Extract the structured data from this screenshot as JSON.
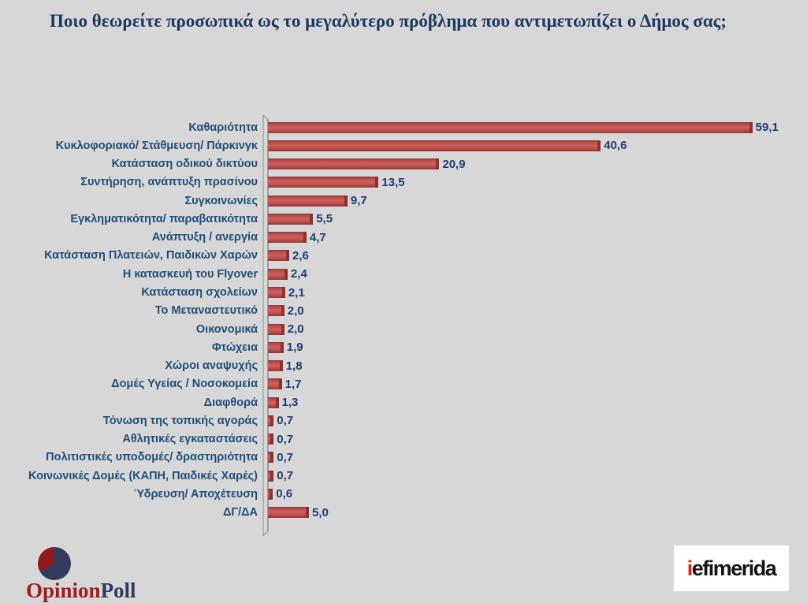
{
  "title": "Ποιο θεωρείτε προσωπικά ως το μεγαλύτερο πρόβλημα που αντιμετωπίζει ο Δήμος σας;",
  "chart_data": {
    "type": "bar",
    "orientation": "horizontal",
    "title": "Ποιο θεωρείτε προσωπικά ως το μεγαλύτερο πρόβλημα που αντιμετωπίζει ο Δήμος σας;",
    "xlabel": "",
    "ylabel": "",
    "xlim": [
      0,
      62
    ],
    "grid": false,
    "legend": false,
    "bar_color": "#c0504d",
    "label_color": "#1f4e79",
    "categories": [
      "Καθαριότητα",
      "Κυκλοφοριακό/ Στάθμευση/ Πάρκινγκ",
      "Κατάσταση οδικού δικτύου",
      "Συντήρηση, ανάπτυξη πρασίνου",
      "Συγκοινωνίες",
      "Εγκληματικότητα/ παραβατικότητα",
      "Ανάπτυξη / ανεργία",
      "Κατάσταση Πλατειών, Παιδικών Χαρών",
      "Η κατασκευή του Flyover",
      "Κατάσταση σχολείων",
      "Το Μεταναστευτικό",
      "Οικονομικά",
      "Φτώχεια",
      "Χώροι αναψυχής",
      "Δομές Υγείας / Νοσοκομεία",
      "Διαφθορά",
      "Τόνωση της τοπικής αγοράς",
      "Αθλητικές εγκαταστάσεις",
      "Πολιτιστικές υποδομές/ δραστηριότητα",
      "Κοινωνικές Δομές (ΚΑΠΗ, Παιδικές Χαρές)",
      "Ύδρευση/ Αποχέτευση",
      "ΔΓ/ΔΑ"
    ],
    "values": [
      59.1,
      40.6,
      20.9,
      13.5,
      9.7,
      5.5,
      4.7,
      2.6,
      2.4,
      2.1,
      2.0,
      2.0,
      1.9,
      1.8,
      1.7,
      1.3,
      0.7,
      0.7,
      0.7,
      0.7,
      0.6,
      5.0
    ],
    "value_labels": [
      "59,1",
      "40,6",
      "20,9",
      "13,5",
      "9,7",
      "5,5",
      "4,7",
      "2,6",
      "2,4",
      "2,1",
      "2,0",
      "2,0",
      "1,9",
      "1,8",
      "1,7",
      "1,3",
      "0,7",
      "0,7",
      "0,7",
      "0,7",
      "0,6",
      "5,0"
    ]
  },
  "branding": {
    "opinionpoll": {
      "part_red": "Opinion",
      "part_blue": "Poll",
      "red": "#9e1b1e",
      "blue": "#2e3a5f"
    },
    "iefimerida": {
      "part_i": "i",
      "part_rest": "efimerida",
      "i_color": "#ee1c0f",
      "text_color": "#141414"
    }
  }
}
